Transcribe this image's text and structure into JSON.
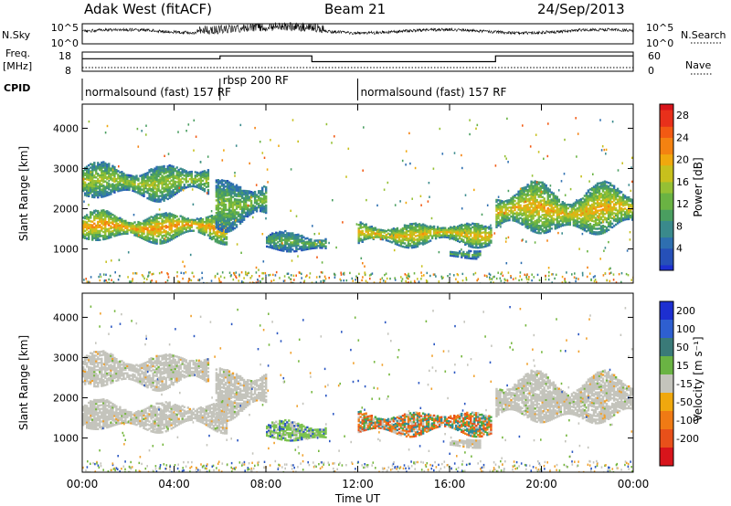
{
  "header": {
    "title": "Adak West (fitACF)",
    "beam": "Beam 21",
    "date": "24/Sep/2013"
  },
  "chart_data": {
    "type": "heatmap",
    "panels": {
      "nsky": {
        "label": "N.Sky",
        "right_label": "N.Search",
        "left_ticks": [
          "10^5",
          "10^0"
        ],
        "right_ticks": [
          "10^5",
          "10^0"
        ]
      },
      "freq": {
        "label_line1": "Freq.",
        "label_line2": "[MHz]",
        "right_label": "Nave",
        "left_ticks": [
          18,
          8
        ],
        "right_ticks": [
          60,
          0
        ],
        "segments": [
          {
            "t0": 0.0,
            "t1": 6.0,
            "freq_mhz": 14.5
          },
          {
            "t0": 6.0,
            "t1": 10.0,
            "freq_mhz": 16.0
          },
          {
            "t0": 10.0,
            "t1": 18.0,
            "freq_mhz": 13.0
          },
          {
            "t0": 18.0,
            "t1": 24.0,
            "freq_mhz": 16.0
          }
        ]
      },
      "cpid": {
        "label": "CPID",
        "modes": [
          {
            "t0": 0.0,
            "t1": 6.0,
            "text": "normalsound (fast) 157 RF"
          },
          {
            "t0": 6.0,
            "t1": 12.0,
            "text": "rbsp 200 RF"
          },
          {
            "t0": 12.0,
            "t1": 24.0,
            "text": "normalsound (fast) 157 RF"
          }
        ]
      },
      "power": {
        "ylabel": "Slant Range [km]",
        "ylim": [
          150,
          4600
        ],
        "yticks": [
          1000,
          2000,
          3000,
          4000
        ],
        "colorbar": {
          "label": "Power [dB]",
          "ticks": [
            4,
            8,
            12,
            16,
            20,
            24,
            28
          ],
          "range": [
            0,
            30
          ]
        }
      },
      "velocity": {
        "ylabel": "Slant Range [km]",
        "ylim": [
          150,
          4600
        ],
        "yticks": [
          1000,
          2000,
          3000,
          4000
        ],
        "colorbar": {
          "label": "Velocity [m s⁻¹]",
          "ticks": [
            200,
            100,
            50,
            15,
            -15,
            -50,
            -100,
            -200
          ]
        }
      }
    },
    "xaxis": {
      "xlabel": "Time UT",
      "xlim": [
        0,
        24
      ],
      "tick_hours": [
        0,
        4,
        8,
        12,
        16,
        20,
        24
      ],
      "tick_labels": [
        "00:00",
        "04:00",
        "08:00",
        "12:00",
        "16:00",
        "20:00",
        "00:00"
      ]
    },
    "echo_regions": [
      {
        "t0": 0.0,
        "t1": 6.3,
        "r_lo": 1150,
        "r_hi": 1900,
        "power_db": 22,
        "vel": "ground"
      },
      {
        "t0": 0.0,
        "t1": 5.5,
        "r_lo": 2200,
        "r_hi": 3100,
        "power_db": 16,
        "vel": "ground"
      },
      {
        "t0": 5.8,
        "t1": 8.0,
        "r_lo": 1500,
        "r_hi": 2800,
        "power_db": 14,
        "vel": "ground"
      },
      {
        "t0": 8.0,
        "t1": 10.6,
        "r_lo": 900,
        "r_hi": 1400,
        "power_db": 12,
        "vel": "positive"
      },
      {
        "t0": 12.0,
        "t1": 17.8,
        "r_lo": 1050,
        "r_hi": 1650,
        "power_db": 20,
        "vel": "mixed"
      },
      {
        "t0": 16.0,
        "t1": 17.3,
        "r_lo": 750,
        "r_hi": 950,
        "power_db": 12,
        "vel": "ground"
      },
      {
        "t0": 18.0,
        "t1": 24.0,
        "r_lo": 1300,
        "r_hi": 2600,
        "power_db": 20,
        "vel": "ground"
      }
    ]
  }
}
